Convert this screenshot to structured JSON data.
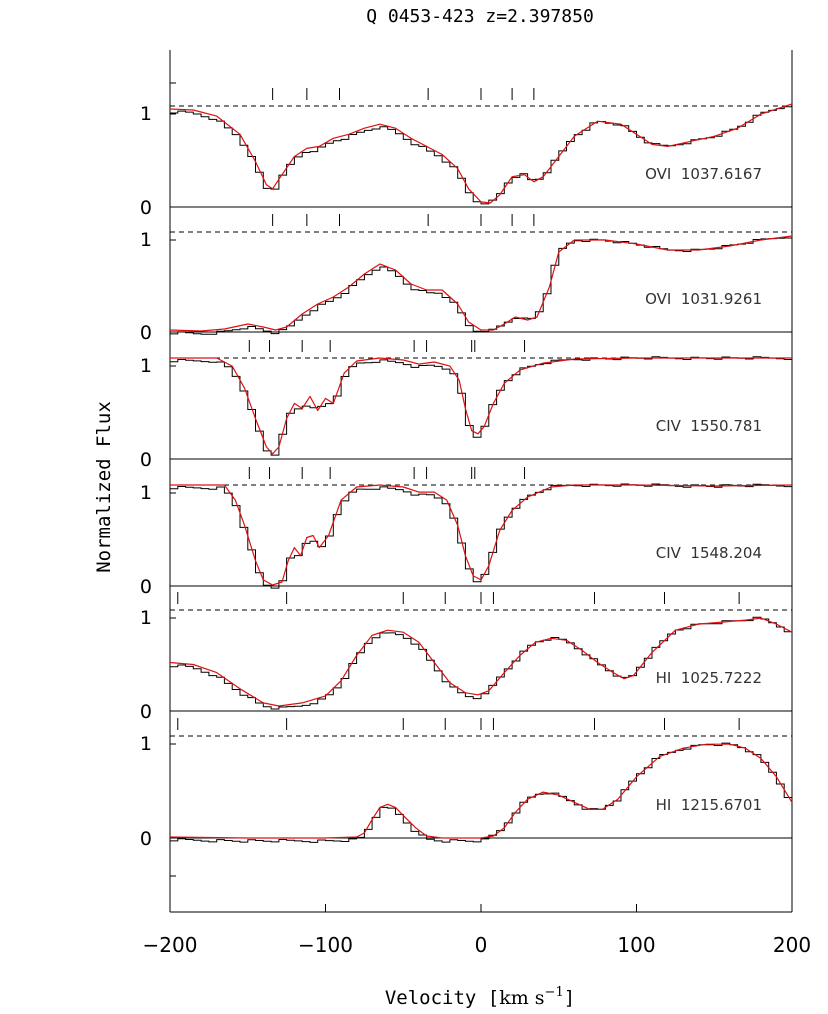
{
  "chart_data": {
    "type": "line",
    "title": "Q 0453-423 z=2.397850",
    "xlabel_prefix": "Velocity [",
    "xlabel_unit": "km s",
    "xlabel_exp": "−1",
    "xlabel_suffix": "]",
    "ylabel": "Normalized Flux",
    "xlim": [
      -200,
      200
    ],
    "x_ticks": [
      -200,
      -100,
      0,
      100,
      200
    ],
    "x_tick_labels": [
      "−200",
      "−100",
      "0",
      "100",
      "200"
    ],
    "panels": [
      {
        "label": "OVI  1037.6167",
        "tick_labels": [
          "0",
          "1"
        ],
        "components": [
          -134,
          -112,
          -91,
          -34,
          0,
          20,
          34
        ],
        "flux": [
          [
            -200,
            0.97
          ],
          [
            -185,
            0.96
          ],
          [
            -170,
            0.9
          ],
          [
            -155,
            0.72
          ],
          [
            -145,
            0.45
          ],
          [
            -138,
            0.22
          ],
          [
            -134,
            0.18
          ],
          [
            -128,
            0.32
          ],
          [
            -120,
            0.5
          ],
          [
            -112,
            0.58
          ],
          [
            -104,
            0.6
          ],
          [
            -95,
            0.68
          ],
          [
            -85,
            0.72
          ],
          [
            -75,
            0.78
          ],
          [
            -65,
            0.82
          ],
          [
            -55,
            0.78
          ],
          [
            -45,
            0.68
          ],
          [
            -35,
            0.6
          ],
          [
            -25,
            0.52
          ],
          [
            -15,
            0.38
          ],
          [
            -8,
            0.18
          ],
          [
            0,
            0.05
          ],
          [
            6,
            0.04
          ],
          [
            12,
            0.12
          ],
          [
            20,
            0.3
          ],
          [
            28,
            0.32
          ],
          [
            34,
            0.25
          ],
          [
            40,
            0.3
          ],
          [
            50,
            0.5
          ],
          [
            60,
            0.7
          ],
          [
            75,
            0.85
          ],
          [
            90,
            0.82
          ],
          [
            100,
            0.72
          ],
          [
            110,
            0.62
          ],
          [
            120,
            0.6
          ],
          [
            135,
            0.65
          ],
          [
            150,
            0.7
          ],
          [
            165,
            0.78
          ],
          [
            180,
            0.92
          ],
          [
            200,
            1.02
          ]
        ]
      },
      {
        "label": "OVI  1031.9261",
        "tick_labels": [
          "0",
          "1"
        ],
        "components": [
          -134,
          -112,
          -91,
          -34,
          0,
          20,
          34
        ],
        "flux": [
          [
            -200,
            0.02
          ],
          [
            -180,
            0.01
          ],
          [
            -165,
            0.03
          ],
          [
            -150,
            0.08
          ],
          [
            -140,
            0.05
          ],
          [
            -132,
            0.02
          ],
          [
            -125,
            0.05
          ],
          [
            -115,
            0.18
          ],
          [
            -105,
            0.28
          ],
          [
            -95,
            0.35
          ],
          [
            -85,
            0.45
          ],
          [
            -75,
            0.58
          ],
          [
            -65,
            0.68
          ],
          [
            -55,
            0.62
          ],
          [
            -45,
            0.48
          ],
          [
            -35,
            0.42
          ],
          [
            -25,
            0.42
          ],
          [
            -15,
            0.28
          ],
          [
            -8,
            0.1
          ],
          [
            0,
            0.02
          ],
          [
            8,
            0.02
          ],
          [
            15,
            0.08
          ],
          [
            22,
            0.15
          ],
          [
            30,
            0.12
          ],
          [
            36,
            0.15
          ],
          [
            44,
            0.45
          ],
          [
            50,
            0.8
          ],
          [
            60,
            0.92
          ],
          [
            80,
            0.92
          ],
          [
            100,
            0.88
          ],
          [
            120,
            0.82
          ],
          [
            140,
            0.82
          ],
          [
            160,
            0.86
          ],
          [
            180,
            0.92
          ],
          [
            200,
            0.96
          ]
        ]
      },
      {
        "label": "CIV  1550.781",
        "tick_labels": [
          "0",
          "1"
        ],
        "components": [
          -149,
          -136,
          -115,
          -97,
          -43,
          -35,
          -6,
          -4,
          28
        ],
        "flux": [
          [
            -200,
            1.0
          ],
          [
            -170,
            1.0
          ],
          [
            -160,
            0.92
          ],
          [
            -152,
            0.7
          ],
          [
            -145,
            0.4
          ],
          [
            -138,
            0.12
          ],
          [
            -134,
            0.05
          ],
          [
            -130,
            0.12
          ],
          [
            -125,
            0.4
          ],
          [
            -120,
            0.55
          ],
          [
            -115,
            0.5
          ],
          [
            -110,
            0.62
          ],
          [
            -105,
            0.48
          ],
          [
            -100,
            0.6
          ],
          [
            -95,
            0.55
          ],
          [
            -88,
            0.85
          ],
          [
            -80,
            0.97
          ],
          [
            -65,
            1.0
          ],
          [
            -50,
            0.98
          ],
          [
            -40,
            0.94
          ],
          [
            -30,
            0.96
          ],
          [
            -20,
            0.92
          ],
          [
            -14,
            0.78
          ],
          [
            -10,
            0.5
          ],
          [
            -6,
            0.28
          ],
          [
            -2,
            0.25
          ],
          [
            2,
            0.32
          ],
          [
            8,
            0.55
          ],
          [
            15,
            0.75
          ],
          [
            25,
            0.88
          ],
          [
            40,
            0.95
          ],
          [
            60,
            0.99
          ],
          [
            100,
            1.0
          ],
          [
            150,
            1.0
          ],
          [
            200,
            1.0
          ]
        ]
      },
      {
        "label": "CIV  1548.204",
        "tick_labels": [
          "0",
          "1"
        ],
        "components": [
          -149,
          -136,
          -115,
          -97,
          -43,
          -35,
          -6,
          -4,
          28
        ],
        "flux": [
          [
            -200,
            1.0
          ],
          [
            -165,
            1.0
          ],
          [
            -158,
            0.85
          ],
          [
            -152,
            0.6
          ],
          [
            -145,
            0.25
          ],
          [
            -140,
            0.06
          ],
          [
            -134,
            0.01
          ],
          [
            -128,
            0.04
          ],
          [
            -124,
            0.25
          ],
          [
            -120,
            0.38
          ],
          [
            -116,
            0.3
          ],
          [
            -112,
            0.48
          ],
          [
            -108,
            0.5
          ],
          [
            -104,
            0.38
          ],
          [
            -98,
            0.5
          ],
          [
            -90,
            0.85
          ],
          [
            -80,
            0.98
          ],
          [
            -65,
            1.0
          ],
          [
            -50,
            0.98
          ],
          [
            -40,
            0.93
          ],
          [
            -30,
            0.93
          ],
          [
            -22,
            0.85
          ],
          [
            -15,
            0.6
          ],
          [
            -10,
            0.3
          ],
          [
            -5,
            0.1
          ],
          [
            0,
            0.06
          ],
          [
            5,
            0.2
          ],
          [
            12,
            0.55
          ],
          [
            20,
            0.75
          ],
          [
            30,
            0.88
          ],
          [
            45,
            0.98
          ],
          [
            60,
            1.0
          ],
          [
            100,
            1.0
          ],
          [
            150,
            0.99
          ],
          [
            200,
            1.0
          ]
        ]
      },
      {
        "label": "HI  1025.7222",
        "tick_labels": [
          "0",
          "1"
        ],
        "components": [
          -195,
          -125,
          -50,
          -23,
          0,
          8,
          73,
          118,
          166
        ],
        "flux": [
          [
            -200,
            0.48
          ],
          [
            -185,
            0.46
          ],
          [
            -170,
            0.38
          ],
          [
            -155,
            0.22
          ],
          [
            -140,
            0.08
          ],
          [
            -130,
            0.05
          ],
          [
            -115,
            0.08
          ],
          [
            -100,
            0.15
          ],
          [
            -90,
            0.3
          ],
          [
            -80,
            0.55
          ],
          [
            -70,
            0.75
          ],
          [
            -60,
            0.8
          ],
          [
            -50,
            0.78
          ],
          [
            -40,
            0.68
          ],
          [
            -30,
            0.48
          ],
          [
            -20,
            0.28
          ],
          [
            -10,
            0.18
          ],
          [
            -2,
            0.16
          ],
          [
            5,
            0.2
          ],
          [
            15,
            0.38
          ],
          [
            25,
            0.55
          ],
          [
            35,
            0.68
          ],
          [
            45,
            0.72
          ],
          [
            55,
            0.7
          ],
          [
            65,
            0.6
          ],
          [
            75,
            0.48
          ],
          [
            85,
            0.38
          ],
          [
            92,
            0.32
          ],
          [
            98,
            0.35
          ],
          [
            110,
            0.58
          ],
          [
            125,
            0.8
          ],
          [
            140,
            0.86
          ],
          [
            155,
            0.88
          ],
          [
            170,
            0.9
          ],
          [
            180,
            0.92
          ],
          [
            190,
            0.86
          ],
          [
            200,
            0.78
          ]
        ]
      },
      {
        "label": "HI  1215.6701",
        "tick_labels": [
          "0",
          "1"
        ],
        "components": [
          -195,
          -125,
          -50,
          -23,
          0,
          8,
          73,
          118,
          166
        ],
        "flux": [
          [
            -200,
            0.01
          ],
          [
            -150,
            0.0
          ],
          [
            -100,
            0.0
          ],
          [
            -80,
            0.01
          ],
          [
            -75,
            0.05
          ],
          [
            -70,
            0.18
          ],
          [
            -65,
            0.3
          ],
          [
            -60,
            0.33
          ],
          [
            -55,
            0.3
          ],
          [
            -50,
            0.22
          ],
          [
            -42,
            0.1
          ],
          [
            -35,
            0.02
          ],
          [
            -25,
            0.0
          ],
          [
            -10,
            0.0
          ],
          [
            0,
            0.0
          ],
          [
            8,
            0.02
          ],
          [
            15,
            0.1
          ],
          [
            22,
            0.25
          ],
          [
            30,
            0.38
          ],
          [
            40,
            0.45
          ],
          [
            50,
            0.42
          ],
          [
            60,
            0.35
          ],
          [
            70,
            0.28
          ],
          [
            78,
            0.28
          ],
          [
            88,
            0.38
          ],
          [
            100,
            0.6
          ],
          [
            115,
            0.8
          ],
          [
            130,
            0.88
          ],
          [
            145,
            0.92
          ],
          [
            160,
            0.92
          ],
          [
            170,
            0.88
          ],
          [
            180,
            0.78
          ],
          [
            190,
            0.6
          ],
          [
            200,
            0.35
          ]
        ]
      }
    ]
  }
}
